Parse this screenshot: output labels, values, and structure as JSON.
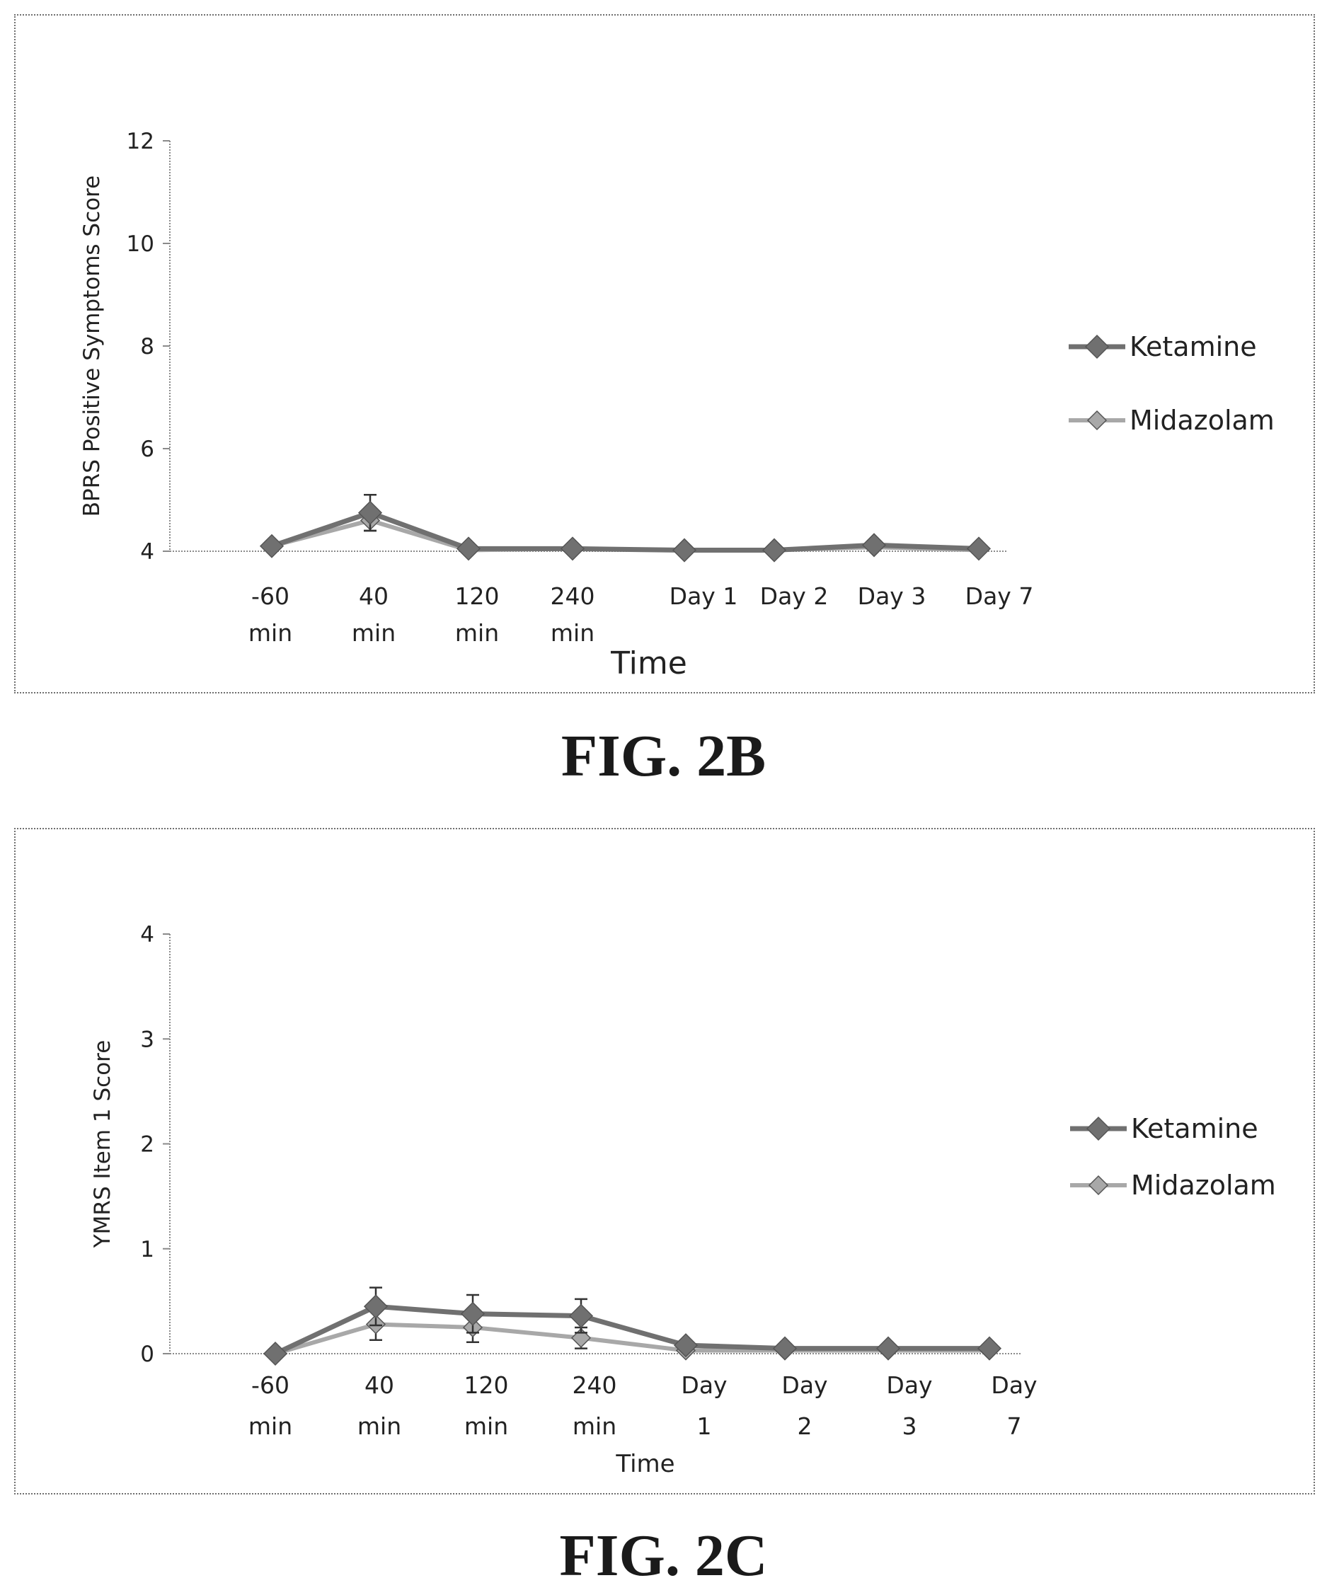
{
  "chart_data": [
    {
      "type": "line",
      "figure_label": "FIG. 2B",
      "xlabel": "Time",
      "ylabel": "BPRS Positive Symptoms Score",
      "categories": [
        [
          "-60",
          "min"
        ],
        [
          "40",
          "min"
        ],
        [
          "120",
          "min"
        ],
        [
          "240",
          "min"
        ],
        [
          "Day 1"
        ],
        [
          "Day 2"
        ],
        [
          "Day 3"
        ],
        [
          "Day 7"
        ]
      ],
      "yticks": [
        "4",
        "6",
        "8",
        "10",
        "12"
      ],
      "ylim": [
        4,
        12
      ],
      "legend_position": "right",
      "series": [
        {
          "name": "Ketamine",
          "values": [
            4.1,
            4.75,
            4.05,
            4.05,
            4.02,
            4.02,
            4.12,
            4.05
          ],
          "err": [
            0,
            0.35,
            0,
            0,
            0,
            0,
            0,
            0
          ]
        },
        {
          "name": "Midazolam",
          "values": [
            4.1,
            4.6,
            4.02,
            4.05,
            4.02,
            4.02,
            4.08,
            4.02
          ],
          "err": [
            0,
            0.2,
            0,
            0,
            0,
            0,
            0,
            0
          ]
        }
      ],
      "colors": {
        "ketamine": "#707070",
        "midazolam": "#a8a8a8"
      }
    },
    {
      "type": "line",
      "figure_label": "FIG. 2C",
      "xlabel": "Time",
      "ylabel": "YMRS Item 1 Score",
      "categories": [
        [
          "-60",
          "min"
        ],
        [
          "40",
          "min"
        ],
        [
          "120",
          "min"
        ],
        [
          "240",
          "min"
        ],
        [
          "Day",
          "1"
        ],
        [
          "Day",
          "2"
        ],
        [
          "Day",
          "3"
        ],
        [
          "Day",
          "7"
        ]
      ],
      "yticks": [
        "0",
        "1",
        "2",
        "3",
        "4"
      ],
      "ylim": [
        0,
        4
      ],
      "legend_position": "right",
      "series": [
        {
          "name": "Ketamine",
          "values": [
            0,
            0.45,
            0.38,
            0.36,
            0.08,
            0.05,
            0.05,
            0.05
          ],
          "err": [
            0,
            0.18,
            0.18,
            0.16,
            0,
            0,
            0,
            0
          ]
        },
        {
          "name": "Midazolam",
          "values": [
            0,
            0.28,
            0.25,
            0.15,
            0.03,
            0.03,
            0.03,
            0.03
          ],
          "err": [
            0,
            0.15,
            0.14,
            0.1,
            0,
            0,
            0,
            0
          ]
        }
      ],
      "colors": {
        "ketamine": "#707070",
        "midazolam": "#a8a8a8"
      }
    }
  ]
}
